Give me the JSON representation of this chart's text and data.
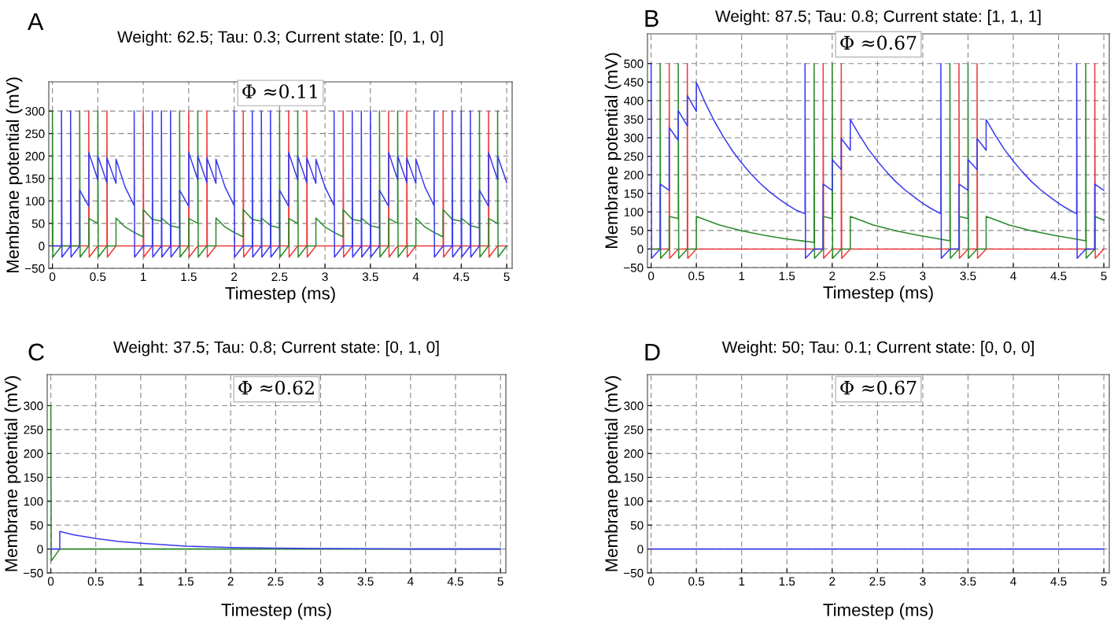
{
  "chart_data": [
    {
      "type": "line",
      "title": "Weight: 62.5; Tau: 0.3; Current state: [0, 1, 0]",
      "xlabel": "Timestep (ms)",
      "ylabel": "Membrane potential (mV)",
      "annotations": [
        "A",
        "Φ ≈0.11"
      ],
      "grid": true,
      "xlim": [
        -0.04,
        5.06
      ],
      "ylim": [
        -50,
        365
      ],
      "xticks": [
        0,
        0.5,
        1,
        1.5,
        2,
        2.5,
        3,
        3.5,
        4,
        4.5,
        5
      ],
      "yticks": [
        -50,
        0,
        50,
        100,
        150,
        200,
        250,
        300
      ],
      "series": [
        {
          "color": "#f03a3a",
          "x": [
            0,
            0.4,
            0.4,
            0.405,
            0.5,
            0.6,
            0.6,
            0.605,
            0.7,
            1.0,
            1.0,
            1.005,
            1.1,
            1.5,
            1.5,
            1.505,
            1.6,
            1.7,
            1.7,
            1.705,
            1.8,
            2.1,
            2.1,
            2.105,
            2.2,
            2.6,
            2.6,
            2.605,
            2.7,
            2.8,
            2.8,
            2.805,
            2.9,
            3.2,
            3.2,
            3.205,
            3.3,
            3.7,
            3.7,
            3.705,
            3.8,
            3.9,
            3.9,
            3.905,
            4.0,
            4.3,
            4.3,
            4.305,
            4.4,
            4.8,
            4.8,
            4.805,
            4.9,
            5.0
          ],
          "values": [
            0,
            0,
            300,
            -25,
            0,
            0,
            300,
            -25,
            0,
            0,
            300,
            -25,
            0,
            0,
            300,
            -25,
            0,
            0,
            300,
            -25,
            0,
            0,
            300,
            -25,
            0,
            0,
            300,
            -25,
            0,
            0,
            300,
            -25,
            0,
            0,
            300,
            -25,
            0,
            0,
            300,
            -25,
            0,
            0,
            300,
            -25,
            0,
            0,
            300,
            -25,
            0,
            0,
            300,
            -25,
            0,
            0
          ]
        },
        {
          "color": "#2a8a2a",
          "x": [
            0,
            0,
            0.005,
            0.1,
            0.3,
            0.3,
            0.305,
            0.4,
            0.4,
            0.5,
            0.5,
            0.505,
            0.6,
            0.7,
            0.7,
            0.8,
            0.9,
            1.0,
            1.0,
            1.1,
            1.2,
            1.2,
            1.3,
            1.4,
            1.4,
            1.405,
            1.5,
            1.5,
            1.6,
            1.6,
            1.605,
            1.7,
            1.8,
            1.8,
            1.9,
            2.0,
            2.1,
            2.1,
            2.2,
            2.3,
            2.3,
            2.4,
            2.5,
            2.5,
            2.505,
            2.6,
            2.6,
            2.7,
            2.7,
            2.705,
            2.8,
            2.9,
            2.9,
            3.0,
            3.1,
            3.2,
            3.2,
            3.3,
            3.4,
            3.4,
            3.5,
            3.6,
            3.6,
            3.605,
            3.7,
            3.7,
            3.8,
            3.8,
            3.805,
            3.9,
            4.0,
            4.0,
            4.1,
            4.2,
            4.3,
            4.3,
            4.4,
            4.5,
            4.5,
            4.6,
            4.7,
            4.7,
            4.705,
            4.8,
            4.8,
            4.9,
            4.9,
            4.905,
            5.0
          ],
          "values": [
            0,
            300,
            -25,
            0,
            0,
            300,
            -25,
            0,
            61,
            50,
            300,
            -25,
            0,
            0,
            62,
            42,
            30,
            20,
            81,
            59,
            55,
            62,
            45,
            40,
            300,
            -25,
            0,
            61,
            50,
            300,
            -25,
            0,
            0,
            62,
            42,
            30,
            20,
            81,
            59,
            55,
            62,
            45,
            40,
            300,
            -25,
            0,
            61,
            50,
            300,
            -25,
            0,
            0,
            62,
            42,
            30,
            20,
            81,
            59,
            55,
            62,
            45,
            40,
            300,
            -25,
            0,
            61,
            50,
            300,
            -25,
            0,
            0,
            62,
            42,
            30,
            20,
            81,
            59,
            55,
            62,
            45,
            40,
            300,
            -25,
            0,
            61,
            50,
            300,
            -25,
            0
          ]
        },
        {
          "color": "#3a3af0",
          "x": [
            0,
            0.1,
            0.1,
            0.105,
            0.2,
            0.2,
            0.205,
            0.3,
            0.3,
            0.4,
            0.4,
            0.5,
            0.5,
            0.6,
            0.6,
            0.7,
            0.7,
            0.8,
            0.9,
            0.9,
            0.905,
            1.0,
            1.1,
            1.1,
            1.105,
            1.2,
            1.2,
            1.205,
            1.3,
            1.3,
            1.305,
            1.4,
            1.4,
            1.5,
            1.5,
            1.6,
            1.6,
            1.7,
            1.7,
            1.8,
            1.8,
            1.9,
            2.0,
            2.0,
            2.005,
            2.1,
            2.2,
            2.2,
            2.205,
            2.3,
            2.3,
            2.305,
            2.4,
            2.4,
            2.405,
            2.5,
            2.5,
            2.6,
            2.6,
            2.7,
            2.7,
            2.8,
            2.8,
            2.9,
            2.9,
            3.0,
            3.1,
            3.1,
            3.105,
            3.2,
            3.3,
            3.3,
            3.305,
            3.4,
            3.4,
            3.405,
            3.5,
            3.5,
            3.505,
            3.6,
            3.6,
            3.7,
            3.7,
            3.8,
            3.8,
            3.9,
            3.9,
            4.0,
            4.0,
            4.1,
            4.2,
            4.2,
            4.205,
            4.3,
            4.4,
            4.4,
            4.405,
            4.5,
            4.5,
            4.505,
            4.6,
            4.6,
            4.605,
            4.7,
            4.7,
            4.8,
            4.8,
            4.9,
            4.9,
            5.0
          ],
          "values": [
            0,
            0,
            300,
            -25,
            0,
            300,
            -25,
            0,
            124,
            88,
            208,
            147,
            200,
            141,
            196,
            139,
            193,
            131,
            90,
            300,
            -25,
            0,
            0,
            300,
            -25,
            0,
            300,
            -25,
            0,
            300,
            -25,
            0,
            124,
            88,
            208,
            147,
            200,
            141,
            196,
            139,
            193,
            131,
            90,
            300,
            -25,
            0,
            0,
            300,
            -25,
            0,
            300,
            -25,
            0,
            300,
            -25,
            0,
            124,
            88,
            208,
            147,
            200,
            141,
            196,
            139,
            193,
            131,
            90,
            300,
            -25,
            0,
            0,
            300,
            -25,
            0,
            300,
            -25,
            0,
            300,
            -25,
            0,
            124,
            88,
            208,
            147,
            200,
            141,
            196,
            139,
            193,
            131,
            90,
            300,
            -25,
            0,
            0,
            300,
            -25,
            0,
            300,
            -25,
            0,
            300,
            -25,
            0,
            124,
            88,
            208,
            147,
            200,
            141
          ]
        }
      ]
    },
    {
      "type": "line",
      "title": "Weight: 87.5; Tau: 0.8; Current state: [1, 1, 1]",
      "xlabel": "Timestep (ms)",
      "ylabel": "Membrane potential (mV)",
      "annotations": [
        "B",
        "Φ ≈0.67"
      ],
      "grid": true,
      "xlim": [
        -0.04,
        5.06
      ],
      "ylim": [
        -50,
        580
      ],
      "xticks": [
        0,
        0.5,
        1,
        1.5,
        2,
        2.5,
        3,
        3.5,
        4,
        4.5,
        5
      ],
      "yticks": [
        -50,
        0,
        50,
        100,
        150,
        200,
        250,
        300,
        350,
        400,
        450,
        500
      ],
      "series": [
        {
          "color": "#f03a3a",
          "x": [
            0,
            0.2,
            0.2,
            0.205,
            0.3,
            0.4,
            0.4,
            0.405,
            0.5,
            1.9,
            1.9,
            1.905,
            2.0,
            2.1,
            2.1,
            2.105,
            2.2,
            3.4,
            3.4,
            3.405,
            3.5,
            3.6,
            3.6,
            3.605,
            3.7,
            4.9,
            4.9,
            4.905,
            5.0
          ],
          "values": [
            0,
            0,
            500,
            -25,
            0,
            0,
            500,
            -25,
            0,
            0,
            500,
            -25,
            0,
            0,
            500,
            -25,
            0,
            0,
            500,
            -25,
            0,
            0,
            500,
            -25,
            0,
            0,
            500,
            -25,
            0
          ]
        },
        {
          "color": "#2a8a2a",
          "x": [
            0,
            0.1,
            0.1,
            0.105,
            0.2,
            0.2,
            0.3,
            0.3,
            0.305,
            0.4,
            0.5,
            0.5,
            0.75,
            1.0,
            1.25,
            1.5,
            1.8,
            1.8,
            1.805,
            1.9,
            1.9,
            2.0,
            2.0,
            2.005,
            2.1,
            2.2,
            2.2,
            2.45,
            2.7,
            2.95,
            3.3,
            3.3,
            3.305,
            3.4,
            3.4,
            3.5,
            3.5,
            3.505,
            3.6,
            3.7,
            3.7,
            3.95,
            4.2,
            4.45,
            4.8,
            4.8,
            4.805,
            4.9,
            4.9,
            5.0
          ],
          "values": [
            0,
            0,
            500,
            -25,
            0,
            88,
            82,
            500,
            -25,
            0,
            0,
            88,
            65,
            49,
            37,
            27,
            18,
            500,
            -25,
            0,
            88,
            82,
            500,
            -25,
            0,
            0,
            88,
            65,
            49,
            37,
            22,
            500,
            -25,
            0,
            88,
            82,
            500,
            -25,
            0,
            0,
            88,
            65,
            49,
            37,
            22,
            500,
            -25,
            0,
            88,
            78
          ]
        },
        {
          "color": "#3a3af0",
          "x": [
            0,
            0.005,
            0.1,
            0.1,
            0.2,
            0.2,
            0.3,
            0.3,
            0.4,
            0.4,
            0.5,
            0.5,
            0.6,
            0.7,
            0.8,
            0.9,
            1.0,
            1.1,
            1.2,
            1.3,
            1.4,
            1.5,
            1.6,
            1.7,
            1.7,
            1.705,
            1.8,
            1.9,
            1.9,
            2.0,
            2.0,
            2.1,
            2.1,
            2.2,
            2.2,
            2.3,
            2.4,
            2.5,
            2.6,
            2.7,
            2.8,
            2.9,
            3.0,
            3.1,
            3.2,
            3.2,
            3.205,
            3.3,
            3.4,
            3.4,
            3.5,
            3.5,
            3.6,
            3.6,
            3.7,
            3.7,
            3.8,
            3.9,
            4.0,
            4.1,
            4.2,
            4.3,
            4.4,
            4.5,
            4.6,
            4.7,
            4.7,
            4.705,
            4.8,
            4.9,
            4.9,
            5.0
          ],
          "values": [
            500,
            -25,
            0,
            175,
            158,
            327,
            293,
            373,
            332,
            414,
            371,
            449,
            393,
            344,
            302,
            264,
            232,
            203,
            178,
            156,
            137,
            120,
            105,
            95,
            500,
            -25,
            0,
            0,
            175,
            158,
            241,
            214,
            298,
            266,
            349,
            307,
            269,
            237,
            208,
            182,
            160,
            141,
            123,
            108,
            95,
            500,
            -25,
            0,
            0,
            175,
            158,
            241,
            214,
            298,
            266,
            349,
            307,
            269,
            237,
            208,
            182,
            160,
            141,
            123,
            108,
            95,
            500,
            -25,
            0,
            0,
            175,
            158
          ]
        }
      ]
    },
    {
      "type": "line",
      "title": "Weight: 37.5; Tau: 0.8; Current state: [0, 1, 0]",
      "xlabel": "Timestep (ms)",
      "ylabel": "Membrane potential (mV)",
      "annotations": [
        "C",
        "Φ ≈0.62"
      ],
      "grid": true,
      "xlim": [
        -0.04,
        5.06
      ],
      "ylim": [
        -50,
        365
      ],
      "xticks": [
        0,
        0.5,
        1,
        1.5,
        2,
        2.5,
        3,
        3.5,
        4,
        4.5,
        5
      ],
      "yticks": [
        -50,
        0,
        50,
        100,
        150,
        200,
        250,
        300
      ],
      "series": [
        {
          "color": "#2a8a2a",
          "x": [
            0,
            0.005,
            0.1,
            5.0
          ],
          "values": [
            300,
            -25,
            0,
            0
          ]
        },
        {
          "color": "#3a3af0",
          "x": [
            0,
            0.1,
            0.1,
            0.25,
            0.5,
            0.75,
            1.0,
            1.5,
            2.0,
            2.5,
            3.0,
            4.0,
            5.0
          ],
          "values": [
            0,
            0,
            37,
            30,
            22,
            16,
            12,
            6,
            3,
            2,
            1,
            0,
            0
          ]
        }
      ]
    },
    {
      "type": "line",
      "title": "Weight: 50; Tau: 0.1; Current state: [0, 0, 0]",
      "xlabel": "Timestep (ms)",
      "ylabel": "Membrane potential (mV)",
      "annotations": [
        "D",
        "Φ ≈0.67"
      ],
      "grid": true,
      "xlim": [
        -0.04,
        5.06
      ],
      "ylim": [
        -50,
        365
      ],
      "xticks": [
        0,
        0.5,
        1,
        1.5,
        2,
        2.5,
        3,
        3.5,
        4,
        4.5,
        5
      ],
      "yticks": [
        -50,
        0,
        50,
        100,
        150,
        200,
        250,
        300
      ],
      "series": [
        {
          "color": "#3a3af0",
          "x": [
            0,
            5
          ],
          "values": [
            0,
            0
          ]
        }
      ]
    }
  ]
}
